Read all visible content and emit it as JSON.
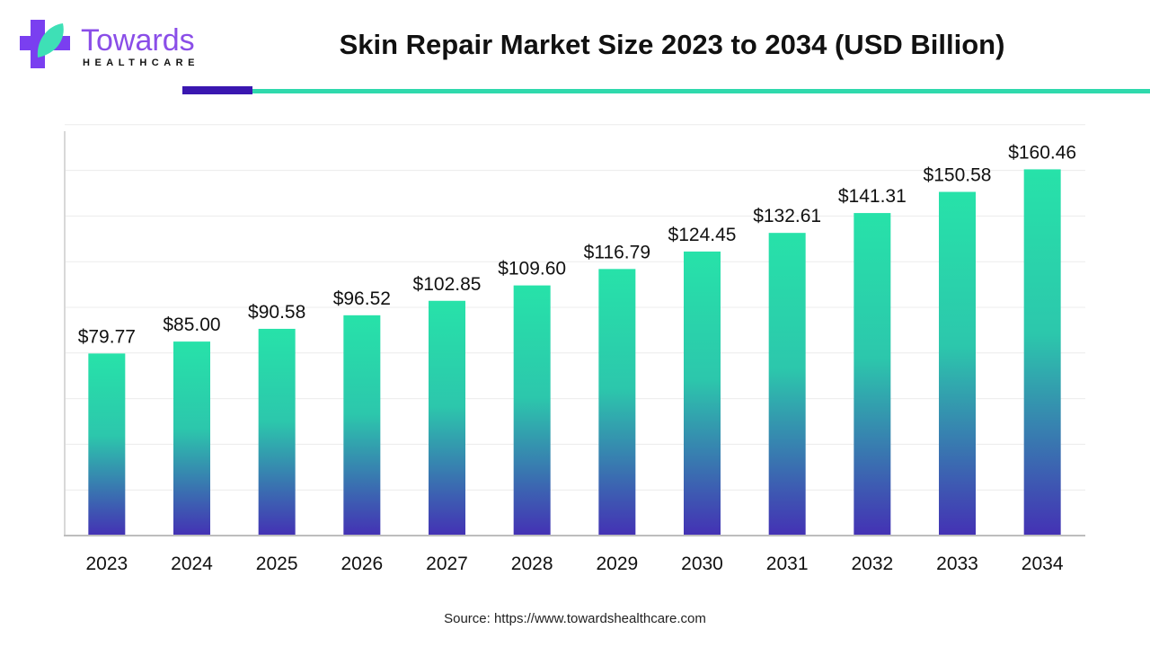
{
  "logo": {
    "name": "Towards",
    "sub": "HEALTHCARE"
  },
  "header": {
    "title": "Skin Repair Market Size 2023 to 2034 (USD Billion)"
  },
  "footer": {
    "source": "Source: https://www.towardshealthcare.com"
  },
  "colors": {
    "bar_top": "#27e2a9",
    "bar_bottom": "#4431b4",
    "accent_dark": "#3a17b0",
    "accent_light": "#2fd9ac"
  },
  "chart_data": {
    "type": "bar",
    "title": "Skin Repair Market Size 2023 to 2034 (USD Billion)",
    "xlabel": "",
    "ylabel": "",
    "categories": [
      "2023",
      "2024",
      "2025",
      "2026",
      "2027",
      "2028",
      "2029",
      "2030",
      "2031",
      "2032",
      "2033",
      "2034"
    ],
    "values": [
      79.77,
      85.0,
      90.58,
      96.52,
      102.85,
      109.6,
      116.79,
      124.45,
      132.61,
      141.31,
      150.58,
      160.46
    ],
    "data_labels": [
      "$79.77",
      "$85.00",
      "$90.58",
      "$96.52",
      "$102.85",
      "$109.60",
      "$116.79",
      "$124.45",
      "$132.61",
      "$141.31",
      "$150.58",
      "$160.46"
    ],
    "ylim": [
      0,
      180
    ],
    "grid": true,
    "grid_step": 20,
    "legend": "none"
  }
}
